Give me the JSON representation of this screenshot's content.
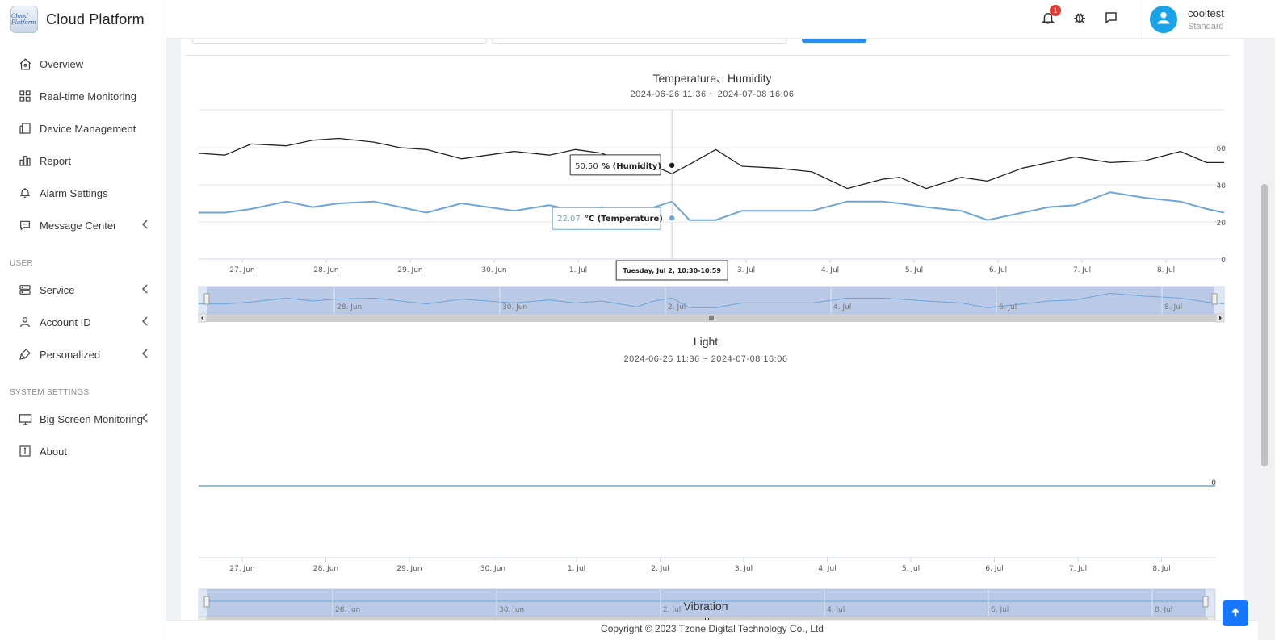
{
  "app": {
    "title": "Cloud Platform",
    "logo_text": "Cloud Platform"
  },
  "sidebar": {
    "items": [
      {
        "label": "Overview",
        "icon": "home-icon"
      },
      {
        "label": "Real-time Monitoring",
        "icon": "grid-icon"
      },
      {
        "label": "Device Management",
        "icon": "device-icon"
      },
      {
        "label": "Report",
        "icon": "bar-chart-icon"
      },
      {
        "label": "Alarm Settings",
        "icon": "alarm-icon"
      },
      {
        "label": "Message Center",
        "icon": "message-icon"
      }
    ],
    "section_user": "USER",
    "user_items": [
      {
        "label": "Service",
        "icon": "server-icon"
      },
      {
        "label": "Account ID",
        "icon": "user-icon"
      },
      {
        "label": "Personalized",
        "icon": "brush-icon"
      }
    ],
    "section_system": "SYSTEM SETTINGS",
    "system_items": [
      {
        "label": "Big Screen Monitoring",
        "icon": "monitor-icon"
      },
      {
        "label": "About",
        "icon": "info-icon"
      }
    ]
  },
  "header": {
    "notification_count": "1",
    "user_name": "cooltest",
    "user_role": "Standard"
  },
  "charts": {
    "temp_humidity": {
      "title": "Temperature、Humidity",
      "range": "2024-06-26 11:36 ~ 2024-07-08 16:06",
      "tooltip_humidity_value": "50.50",
      "tooltip_humidity_label": "% (Humidity)",
      "tooltip_temp_value": "22.07",
      "tooltip_temp_label": "℃ (Temperature)",
      "tooltip_time": "Tuesday, Jul 2, 10:30-10:59"
    },
    "light": {
      "title": "Light",
      "range": "2024-06-26 11:36 ~ 2024-07-08 16:06"
    },
    "vibration": {
      "title": "Vibration"
    }
  },
  "chart_data": [
    {
      "type": "line",
      "title": "Temperature、Humidity",
      "subtitle": "2024-06-26 11:36 ~ 2024-07-08 16:06",
      "x_ticks": [
        "27. Jun",
        "28. Jun",
        "29. Jun",
        "30. Jun",
        "1. Jul",
        "2. Jul",
        "3. Jul",
        "4. Jul",
        "5. Jul",
        "6. Jul",
        "7. Jul",
        "8. Jul"
      ],
      "y_ticks": [
        "0",
        "20",
        "40",
        "60"
      ],
      "ylim": [
        0,
        60
      ],
      "navigator_ticks": [
        "28. Jun",
        "30. Jun",
        "2. Jul",
        "4. Jul",
        "6. Jul",
        "8. Jul"
      ],
      "series": [
        {
          "name": "Humidity",
          "color": "#222222",
          "x": [
            0,
            0.3,
            0.6,
            1.0,
            1.3,
            1.6,
            2.0,
            2.3,
            2.6,
            3.0,
            3.3,
            3.6,
            4.0,
            4.3,
            4.6,
            5.0,
            5.2,
            5.4,
            5.6,
            5.9,
            6.2,
            6.6,
            7.0,
            7.4,
            7.8,
            8.0,
            8.3,
            8.7,
            9.0,
            9.4,
            9.7,
            10.0,
            10.4,
            10.8,
            11.2,
            11.5,
            11.7
          ],
          "values": [
            57,
            56,
            62,
            61,
            64,
            65,
            63,
            60,
            59,
            54,
            56,
            58,
            56,
            59,
            57,
            49,
            50,
            46,
            51,
            59,
            50,
            49,
            47,
            38,
            43,
            44,
            38,
            44,
            42,
            49,
            52,
            55,
            52,
            53,
            58,
            52,
            52
          ]
        },
        {
          "name": "Temperature",
          "color": "#6aa6da",
          "x": [
            0,
            0.3,
            0.6,
            1.0,
            1.3,
            1.6,
            2.0,
            2.3,
            2.6,
            3.0,
            3.3,
            3.6,
            4.0,
            4.3,
            4.6,
            5.0,
            5.2,
            5.4,
            5.6,
            5.9,
            6.2,
            6.6,
            7.0,
            7.4,
            7.8,
            8.0,
            8.3,
            8.7,
            9.0,
            9.4,
            9.7,
            10.0,
            10.4,
            10.8,
            11.2,
            11.5,
            11.7
          ],
          "values": [
            25,
            25,
            27,
            31,
            28,
            30,
            31,
            28,
            25,
            30,
            28,
            26,
            29,
            26,
            28,
            22,
            28,
            31,
            21,
            21,
            26,
            26,
            26,
            31,
            31,
            30,
            28,
            26,
            21,
            25,
            28,
            29,
            36,
            33,
            31,
            27,
            25
          ]
        }
      ],
      "tooltip": {
        "x": "Tuesday, Jul 2, 10:30-10:59",
        "humidity": 50.5,
        "temperature": 22.07
      }
    },
    {
      "type": "line",
      "title": "Light",
      "subtitle": "2024-06-26 11:36 ~ 2024-07-08 16:06",
      "x_ticks": [
        "27. Jun",
        "28. Jun",
        "29. Jun",
        "30. Jun",
        "1. Jul",
        "2. Jul",
        "3. Jul",
        "4. Jul",
        "5. Jul",
        "6. Jul",
        "7. Jul",
        "8. Jul"
      ],
      "y_ticks": [
        "0"
      ],
      "navigator_ticks": [
        "28. Jun",
        "30. Jun",
        "2. Jul",
        "4. Jul",
        "6. Jul",
        "8. Jul"
      ],
      "series": [
        {
          "name": "Light",
          "color": "#6aa6da",
          "x": [
            0,
            11.7
          ],
          "values": [
            0,
            0
          ]
        }
      ]
    }
  ],
  "footer": {
    "copyright": "Copyright © 2023 Tzone Digital Technology Co., Ltd"
  }
}
